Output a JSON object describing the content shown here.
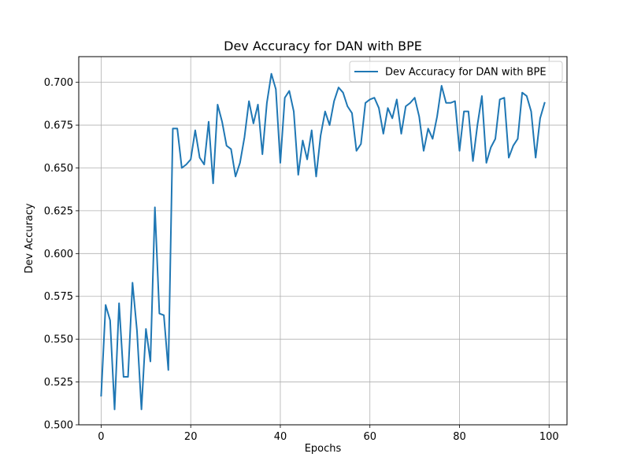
{
  "chart_data": {
    "type": "line",
    "title": "Dev Accuracy for DAN with BPE",
    "xlabel": "Epochs",
    "ylabel": "Dev Accuracy",
    "xlim": [
      -5,
      104
    ],
    "ylim": [
      0.5,
      0.715
    ],
    "xticks": [
      0,
      20,
      40,
      60,
      80,
      100
    ],
    "yticks": [
      0.5,
      0.525,
      0.55,
      0.575,
      0.6,
      0.625,
      0.65,
      0.675,
      0.7
    ],
    "xtick_labels": [
      "0",
      "20",
      "40",
      "60",
      "80",
      "100"
    ],
    "ytick_labels": [
      "0.500",
      "0.525",
      "0.550",
      "0.575",
      "0.600",
      "0.625",
      "0.650",
      "0.675",
      "0.700"
    ],
    "grid": true,
    "legend_position": "top-right",
    "series": [
      {
        "name": "Dev Accuracy for DAN with BPE",
        "color": "#1f77b4",
        "x": [
          0,
          1,
          2,
          3,
          4,
          5,
          6,
          7,
          8,
          9,
          10,
          11,
          12,
          13,
          14,
          15,
          16,
          17,
          18,
          19,
          20,
          21,
          22,
          23,
          24,
          25,
          26,
          27,
          28,
          29,
          30,
          31,
          32,
          33,
          34,
          35,
          36,
          37,
          38,
          39,
          40,
          41,
          42,
          43,
          44,
          45,
          46,
          47,
          48,
          49,
          50,
          51,
          52,
          53,
          54,
          55,
          56,
          57,
          58,
          59,
          60,
          61,
          62,
          63,
          64,
          65,
          66,
          67,
          68,
          69,
          70,
          71,
          72,
          73,
          74,
          75,
          76,
          77,
          78,
          79,
          80,
          81,
          82,
          83,
          84,
          85,
          86,
          87,
          88,
          89,
          90,
          91,
          92,
          93,
          94,
          95,
          96,
          97,
          98,
          99
        ],
        "values": [
          0.517,
          0.57,
          0.561,
          0.509,
          0.571,
          0.528,
          0.528,
          0.583,
          0.555,
          0.509,
          0.556,
          0.537,
          0.627,
          0.565,
          0.564,
          0.532,
          0.673,
          0.673,
          0.65,
          0.652,
          0.655,
          0.672,
          0.656,
          0.652,
          0.677,
          0.641,
          0.687,
          0.677,
          0.663,
          0.661,
          0.645,
          0.653,
          0.668,
          0.689,
          0.676,
          0.687,
          0.658,
          0.688,
          0.705,
          0.696,
          0.653,
          0.691,
          0.695,
          0.683,
          0.646,
          0.666,
          0.655,
          0.672,
          0.645,
          0.669,
          0.683,
          0.675,
          0.689,
          0.697,
          0.694,
          0.686,
          0.682,
          0.66,
          0.664,
          0.688,
          0.69,
          0.691,
          0.685,
          0.67,
          0.685,
          0.679,
          0.69,
          0.67,
          0.686,
          0.688,
          0.691,
          0.68,
          0.66,
          0.673,
          0.667,
          0.68,
          0.698,
          0.688,
          0.688,
          0.689,
          0.66,
          0.683,
          0.683,
          0.654,
          0.675,
          0.692,
          0.653,
          0.662,
          0.667,
          0.69,
          0.691,
          0.656,
          0.663,
          0.667,
          0.694,
          0.692,
          0.683,
          0.656,
          0.679,
          0.688
        ]
      }
    ]
  }
}
